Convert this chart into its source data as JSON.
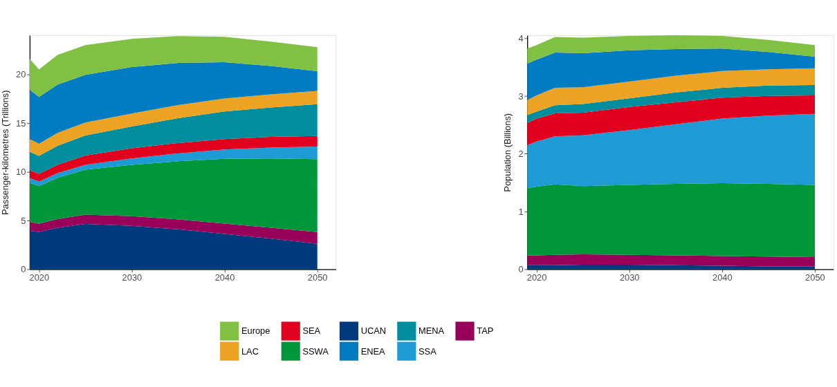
{
  "chart_data": [
    {
      "type": "area",
      "stacked": true,
      "ylabel": "Passenger-kilometres (Trillions)",
      "legend": "bottom",
      "grid": false,
      "x": [
        2019,
        2020,
        2022,
        2025,
        2030,
        2035,
        2040,
        2045,
        2050
      ],
      "xlim": [
        2019,
        2052
      ],
      "xticks": [
        2020,
        2030,
        2040,
        2050
      ],
      "ylim": [
        0,
        24
      ],
      "yticks": [
        0,
        5,
        10,
        15,
        20
      ],
      "series": [
        {
          "name": "UCAN",
          "color": "#003a7d",
          "values": [
            3.96,
            3.82,
            4.27,
            4.65,
            4.46,
            4.1,
            3.63,
            3.14,
            2.62
          ]
        },
        {
          "name": "TAP",
          "color": "#990059",
          "values": [
            0.9,
            0.85,
            0.87,
            0.96,
            0.99,
            1.02,
            1.06,
            1.13,
            1.2
          ]
        },
        {
          "name": "SSWA",
          "color": "#00963a",
          "values": [
            4.01,
            3.87,
            4.25,
            4.6,
            5.26,
            5.96,
            6.65,
            7.1,
            7.48
          ]
        },
        {
          "name": "SSA",
          "color": "#1e9ad4",
          "values": [
            0.47,
            0.45,
            0.47,
            0.5,
            0.66,
            0.81,
            0.95,
            1.11,
            1.29
          ]
        },
        {
          "name": "SEA",
          "color": "#e1001e",
          "values": [
            0.83,
            0.8,
            0.85,
            0.96,
            1.04,
            1.06,
            1.06,
            1.1,
            1.09
          ]
        },
        {
          "name": "MENA",
          "color": "#008e9e",
          "values": [
            1.88,
            1.84,
            1.96,
            2.06,
            2.24,
            2.55,
            2.83,
            3.02,
            3.25
          ]
        },
        {
          "name": "LAC",
          "color": "#eca223",
          "values": [
            1.3,
            1.25,
            1.32,
            1.32,
            1.32,
            1.34,
            1.34,
            1.35,
            1.37
          ]
        },
        {
          "name": "ENEA",
          "color": "#017bc2",
          "values": [
            5.07,
            4.79,
            4.95,
            4.9,
            4.78,
            4.32,
            3.71,
            2.9,
            2.01
          ]
        },
        {
          "name": "Europe",
          "color": "#80c144",
          "values": [
            3.16,
            2.83,
            3.04,
            3.05,
            2.88,
            2.76,
            2.61,
            2.5,
            2.47
          ]
        }
      ]
    },
    {
      "type": "area",
      "stacked": true,
      "ylabel": "Population (Billions)",
      "grid": false,
      "x": [
        2019,
        2020,
        2022,
        2025,
        2030,
        2035,
        2040,
        2045,
        2050
      ],
      "xlim": [
        2019,
        2052
      ],
      "xticks": [
        2020,
        2030,
        2040,
        2050
      ],
      "ylim": [
        0,
        4.05
      ],
      "yticks": [
        0,
        1,
        2,
        3,
        4
      ],
      "series": [
        {
          "name": "UCAN",
          "color": "#003a7d",
          "values": [
            0.07,
            0.07,
            0.07,
            0.08,
            0.08,
            0.07,
            0.06,
            0.05,
            0.05
          ]
        },
        {
          "name": "TAP",
          "color": "#990059",
          "values": [
            0.17,
            0.17,
            0.18,
            0.18,
            0.17,
            0.17,
            0.17,
            0.17,
            0.16
          ]
        },
        {
          "name": "SSWA",
          "color": "#00963a",
          "values": [
            1.16,
            1.19,
            1.22,
            1.18,
            1.21,
            1.24,
            1.26,
            1.26,
            1.25
          ]
        },
        {
          "name": "SSA",
          "color": "#1e9ad4",
          "values": [
            0.75,
            0.78,
            0.83,
            0.88,
            0.95,
            1.03,
            1.12,
            1.18,
            1.23
          ]
        },
        {
          "name": "SEA",
          "color": "#e1001e",
          "values": [
            0.38,
            0.4,
            0.4,
            0.39,
            0.4,
            0.38,
            0.36,
            0.34,
            0.32
          ]
        },
        {
          "name": "MENA",
          "color": "#008e9e",
          "values": [
            0.14,
            0.12,
            0.14,
            0.15,
            0.15,
            0.17,
            0.17,
            0.18,
            0.18
          ]
        },
        {
          "name": "LAC",
          "color": "#eca223",
          "values": [
            0.26,
            0.28,
            0.3,
            0.29,
            0.29,
            0.29,
            0.29,
            0.28,
            0.29
          ]
        },
        {
          "name": "ENEA",
          "color": "#017bc2",
          "values": [
            0.63,
            0.62,
            0.61,
            0.59,
            0.54,
            0.46,
            0.39,
            0.3,
            0.2
          ]
        },
        {
          "name": "Europe",
          "color": "#80c144",
          "values": [
            0.26,
            0.25,
            0.27,
            0.27,
            0.25,
            0.24,
            0.22,
            0.21,
            0.2
          ]
        }
      ]
    }
  ]
}
